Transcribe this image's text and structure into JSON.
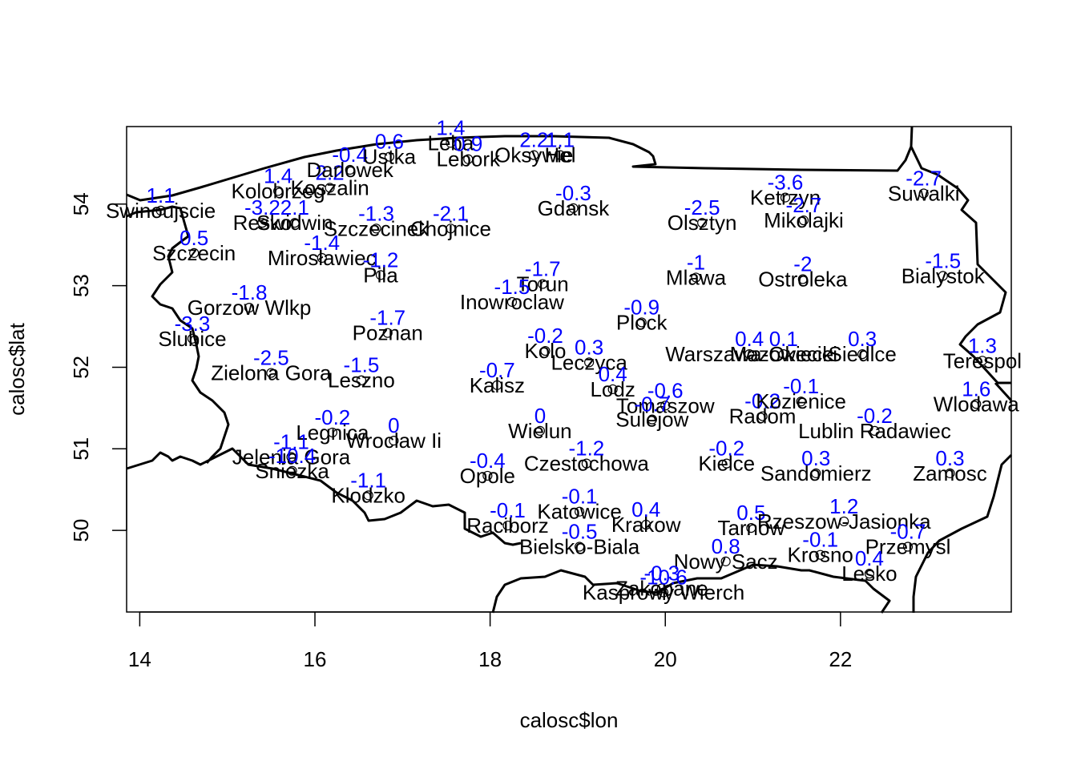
{
  "chart_data": {
    "type": "scatter",
    "title": "",
    "xlabel": "calosc$lon",
    "ylabel": "calosc$lat",
    "xlim": [
      13.85,
      23.95
    ],
    "ylim": [
      49.0,
      54.95
    ],
    "xticks": [
      14,
      16,
      18,
      20,
      22
    ],
    "yticks": [
      50,
      51,
      52,
      53,
      54
    ],
    "grid": false,
    "legend": "none",
    "colors": {
      "points": "#000000",
      "city_text": "#000000",
      "value_text": "#0000ff",
      "border": "#000000"
    },
    "points": [
      {
        "name": "Swinoujscie",
        "lon": 14.24,
        "lat": 53.92,
        "value": "1.1"
      },
      {
        "name": "Szczecin",
        "lon": 14.62,
        "lat": 53.4,
        "value": "0.5"
      },
      {
        "name": "Kolobrzeg",
        "lon": 15.58,
        "lat": 54.16,
        "value": "1.4"
      },
      {
        "name": "Koszalin",
        "lon": 16.17,
        "lat": 54.2,
        "value": "2.2"
      },
      {
        "name": "Darlowek",
        "lon": 16.4,
        "lat": 54.42,
        "value": "-0.4"
      },
      {
        "name": "Ustka",
        "lon": 16.85,
        "lat": 54.58,
        "value": "0.6"
      },
      {
        "name": "Leba",
        "lon": 17.55,
        "lat": 54.75,
        "value": "1.4"
      },
      {
        "name": "Lebork",
        "lon": 17.75,
        "lat": 54.55,
        "value": "0.9"
      },
      {
        "name": "Hel",
        "lon": 18.8,
        "lat": 54.6,
        "value": "1.1"
      },
      {
        "name": "Oksywie",
        "lon": 18.5,
        "lat": 54.6,
        "value": "2.2"
      },
      {
        "name": "Gdansk",
        "lon": 18.95,
        "lat": 53.95,
        "value": "-0.3"
      },
      {
        "name": "Resko",
        "lon": 15.4,
        "lat": 53.77,
        "value": "-3.2"
      },
      {
        "name": "Swidwin",
        "lon": 15.77,
        "lat": 53.77,
        "value": "2.1"
      },
      {
        "name": "Szczecinek",
        "lon": 16.7,
        "lat": 53.7,
        "value": "-1.3"
      },
      {
        "name": "Chojnice",
        "lon": 17.55,
        "lat": 53.7,
        "value": "-2.1"
      },
      {
        "name": "Mirosławiec",
        "lon": 16.08,
        "lat": 53.34,
        "value": "-1.4"
      },
      {
        "name": "Pila",
        "lon": 16.75,
        "lat": 53.13,
        "value": "-1.2"
      },
      {
        "name": "Torun",
        "lon": 18.6,
        "lat": 53.02,
        "value": "-1.7"
      },
      {
        "name": "Inowroclaw",
        "lon": 18.25,
        "lat": 52.8,
        "value": "-1.5"
      },
      {
        "name": "Gorzow Wlkp",
        "lon": 15.25,
        "lat": 52.73,
        "value": "-1.8"
      },
      {
        "name": "Slubice",
        "lon": 14.6,
        "lat": 52.35,
        "value": "-3.3"
      },
      {
        "name": "Poznan",
        "lon": 16.83,
        "lat": 52.42,
        "value": "-1.7"
      },
      {
        "name": "Zielona Gora",
        "lon": 15.5,
        "lat": 51.93,
        "value": "-2.5"
      },
      {
        "name": "Leszno",
        "lon": 16.53,
        "lat": 51.84,
        "value": "-1.5"
      },
      {
        "name": "Kalisz",
        "lon": 18.08,
        "lat": 51.78,
        "value": "-0.7"
      },
      {
        "name": "Kolo",
        "lon": 18.63,
        "lat": 52.2,
        "value": "-0.2"
      },
      {
        "name": "Leczyca",
        "lon": 19.13,
        "lat": 52.06,
        "value": "0.3"
      },
      {
        "name": "Lodz",
        "lon": 19.4,
        "lat": 51.73,
        "value": "0.4"
      },
      {
        "name": "Plock",
        "lon": 19.73,
        "lat": 52.55,
        "value": "-0.9"
      },
      {
        "name": "Warszawa-Okecie",
        "lon": 20.96,
        "lat": 52.16,
        "value": "0.4"
      },
      {
        "name": "Mazowiecki",
        "lon": 21.35,
        "lat": 52.16,
        "value": "0.1"
      },
      {
        "name": "Siedlce",
        "lon": 22.25,
        "lat": 52.16,
        "value": "0.3"
      },
      {
        "name": "Terespol",
        "lon": 23.62,
        "lat": 52.08,
        "value": "1.3"
      },
      {
        "name": "Olsztyn",
        "lon": 20.42,
        "lat": 53.77,
        "value": "-2.5"
      },
      {
        "name": "Ketrzyn",
        "lon": 21.37,
        "lat": 54.08,
        "value": "-3.6"
      },
      {
        "name": "Mikolajki",
        "lon": 21.58,
        "lat": 53.8,
        "value": "-2.7"
      },
      {
        "name": "Suwalki",
        "lon": 22.95,
        "lat": 54.13,
        "value": "-2.7"
      },
      {
        "name": "Mlawa",
        "lon": 20.35,
        "lat": 53.1,
        "value": "-1"
      },
      {
        "name": "Ostroleka",
        "lon": 21.57,
        "lat": 53.08,
        "value": "-2"
      },
      {
        "name": "Bialystok",
        "lon": 23.17,
        "lat": 53.12,
        "value": "-1.5"
      },
      {
        "name": "Tomaszow",
        "lon": 20.0,
        "lat": 51.53,
        "value": "-0.6"
      },
      {
        "name": "Sulejow",
        "lon": 19.85,
        "lat": 51.36,
        "value": "-0.7"
      },
      {
        "name": "Radom",
        "lon": 21.11,
        "lat": 51.4,
        "value": "-0.2"
      },
      {
        "name": "Kozienice",
        "lon": 21.55,
        "lat": 51.58,
        "value": "-0.1"
      },
      {
        "name": "Lublin Radawiec",
        "lon": 22.39,
        "lat": 51.22,
        "value": "-0.2"
      },
      {
        "name": "Wlodawa",
        "lon": 23.55,
        "lat": 51.55,
        "value": "1.6"
      },
      {
        "name": "Legnica",
        "lon": 16.2,
        "lat": 51.2,
        "value": "-0.2"
      },
      {
        "name": "Wroclaw Ii",
        "lon": 16.9,
        "lat": 51.1,
        "value": "0"
      },
      {
        "name": "Wielun",
        "lon": 18.57,
        "lat": 51.22,
        "value": "0"
      },
      {
        "name": "Jelenia Gora",
        "lon": 15.73,
        "lat": 50.9,
        "value": "-1.1"
      },
      {
        "name": "Sniezka",
        "lon": 15.74,
        "lat": 50.73,
        "value": "-10.4"
      },
      {
        "name": "Klodzko",
        "lon": 16.61,
        "lat": 50.43,
        "value": "-1.1"
      },
      {
        "name": "Opole",
        "lon": 17.97,
        "lat": 50.67,
        "value": "-0.4"
      },
      {
        "name": "Czestochowa",
        "lon": 19.1,
        "lat": 50.82,
        "value": "-1.2"
      },
      {
        "name": "Kielce",
        "lon": 20.7,
        "lat": 50.82,
        "value": "-0.2"
      },
      {
        "name": "Sandomierz",
        "lon": 21.72,
        "lat": 50.7,
        "value": "0.3"
      },
      {
        "name": "Zamosc",
        "lon": 23.25,
        "lat": 50.7,
        "value": "0.3"
      },
      {
        "name": "Raciborz",
        "lon": 18.2,
        "lat": 50.06,
        "value": "-0.1"
      },
      {
        "name": "Katowice",
        "lon": 19.02,
        "lat": 50.23,
        "value": "-0.1"
      },
      {
        "name": "Bielsko-Biala",
        "lon": 19.02,
        "lat": 49.8,
        "value": "-0.5"
      },
      {
        "name": "Krakow",
        "lon": 19.78,
        "lat": 50.07,
        "value": "0.4"
      },
      {
        "name": "Tarnow",
        "lon": 20.98,
        "lat": 50.03,
        "value": "0.5"
      },
      {
        "name": "Rzeszow-Jasionka",
        "lon": 22.04,
        "lat": 50.11,
        "value": "1.2"
      },
      {
        "name": "Przemysl",
        "lon": 22.77,
        "lat": 49.8,
        "value": "-0.7"
      },
      {
        "name": "Nowy Sacz",
        "lon": 20.69,
        "lat": 49.62,
        "value": "0.8"
      },
      {
        "name": "Krosno",
        "lon": 21.77,
        "lat": 49.7,
        "value": "-0.1"
      },
      {
        "name": "Lesko",
        "lon": 22.33,
        "lat": 49.47,
        "value": "0.4"
      },
      {
        "name": "Zakopane",
        "lon": 19.96,
        "lat": 49.29,
        "value": "-0.3"
      },
      {
        "name": "Kasprowy Wierch",
        "lon": 19.98,
        "lat": 49.24,
        "value": "-10.6"
      }
    ]
  }
}
